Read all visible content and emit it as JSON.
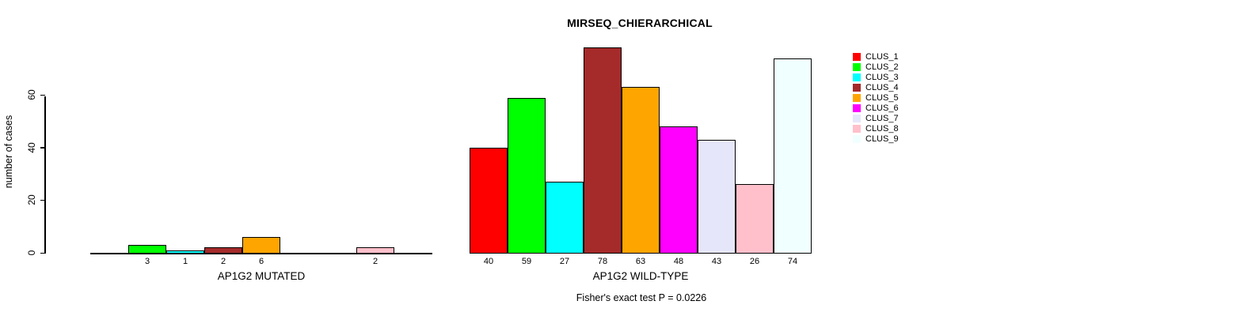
{
  "chart_data": {
    "type": "bar",
    "title": "MIRSEQ_CHIERARCHICAL",
    "ylabel": "number of cases",
    "yticks": [
      0,
      20,
      40,
      60
    ],
    "ylim": [
      0,
      80
    ],
    "grid": false,
    "legend_position": "right",
    "categories": [
      "CLUS_1",
      "CLUS_2",
      "CLUS_3",
      "CLUS_4",
      "CLUS_5",
      "CLUS_6",
      "CLUS_7",
      "CLUS_8",
      "CLUS_9"
    ],
    "colors": [
      "#FF0000",
      "#00FF00",
      "#00FFFF",
      "#A52A2A",
      "#FFA500",
      "#FF00FF",
      "#E6E6FA",
      "#FFC0CB",
      "#F0FFFF"
    ],
    "groups": [
      {
        "label": "AP1G2 MUTATED",
        "values": [
          0,
          3,
          1,
          2,
          6,
          0,
          0,
          2,
          0
        ]
      },
      {
        "label": "AP1G2 WILD-TYPE",
        "values": [
          40,
          59,
          27,
          78,
          63,
          48,
          43,
          26,
          74
        ]
      }
    ],
    "bar_label_rule": "value shown under each bar, zeros hidden",
    "annotation": "Fisher's exact test P = 0.0226"
  }
}
